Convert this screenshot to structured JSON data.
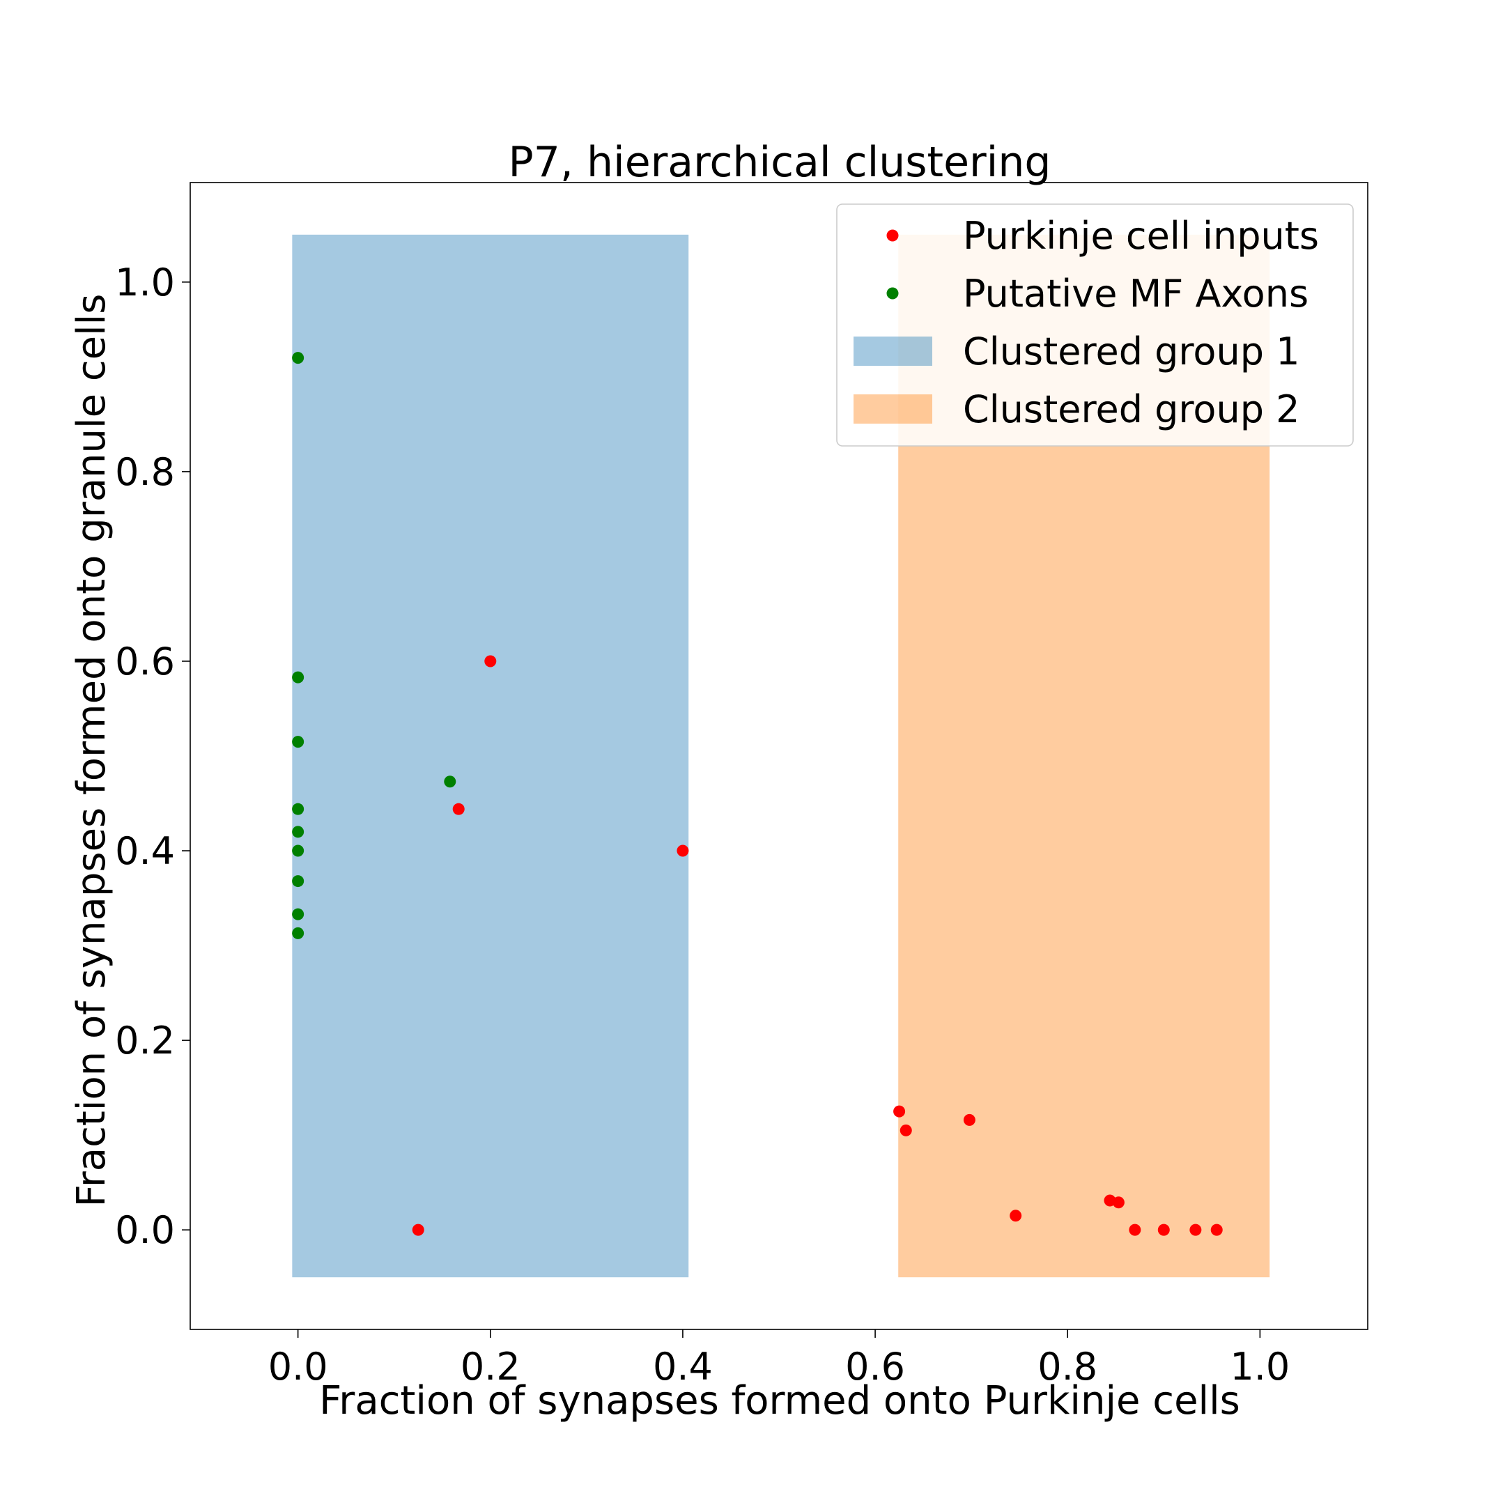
{
  "chart_data": {
    "type": "scatter",
    "title": "P7, hierarchical clustering",
    "xlabel": "Fraction of synapses formed onto Purkinje cells",
    "ylabel": "Fraction of synapses formed onto granule cells",
    "xlim": [
      -0.112,
      1.112
    ],
    "ylim": [
      -0.105,
      1.105
    ],
    "xticks": [
      "0.0",
      "0.2",
      "0.4",
      "0.6",
      "0.8",
      "1.0"
    ],
    "yticks": [
      "0.0",
      "0.2",
      "0.4",
      "0.6",
      "0.8",
      "1.0"
    ],
    "grid": false,
    "legend_position": "top-right",
    "regions": [
      {
        "name": "Clustered group 1",
        "x": [
          -0.006,
          0.406
        ],
        "y": [
          -0.05,
          1.05
        ],
        "color": "#1f77b4",
        "alpha": 0.4
      },
      {
        "name": "Clustered group 2",
        "x": [
          0.624,
          1.01
        ],
        "y": [
          -0.05,
          1.05
        ],
        "color": "#ff7f0e",
        "alpha": 0.4
      }
    ],
    "series": [
      {
        "name": "Purkinje cell inputs",
        "color": "#ff0000",
        "points": [
          [
            0.125,
            0.0
          ],
          [
            0.2,
            0.6
          ],
          [
            0.167,
            0.444
          ],
          [
            0.4,
            0.4
          ],
          [
            0.625,
            0.125
          ],
          [
            0.632,
            0.105
          ],
          [
            0.698,
            0.116
          ],
          [
            0.746,
            0.015
          ],
          [
            0.844,
            0.031
          ],
          [
            0.853,
            0.029
          ],
          [
            0.87,
            0.0
          ],
          [
            0.9,
            0.0
          ],
          [
            0.933,
            0.0
          ],
          [
            0.955,
            0.0
          ]
        ]
      },
      {
        "name": "Putative MF Axons",
        "color": "#008000",
        "points": [
          [
            0.0,
            0.92
          ],
          [
            0.0,
            0.583
          ],
          [
            0.0,
            0.515
          ],
          [
            0.0,
            0.444
          ],
          [
            0.0,
            0.42
          ],
          [
            0.0,
            0.4
          ],
          [
            0.0,
            0.368
          ],
          [
            0.0,
            0.333
          ],
          [
            0.0,
            0.313
          ],
          [
            0.158,
            0.473
          ]
        ]
      }
    ],
    "legend": [
      {
        "label": "Purkinje cell inputs",
        "kind": "marker",
        "color": "#ff0000"
      },
      {
        "label": "Putative MF Axons",
        "kind": "marker",
        "color": "#008000"
      },
      {
        "label": "Clustered group 1",
        "kind": "patch",
        "color": "#1f77b4"
      },
      {
        "label": "Clustered group 2",
        "kind": "patch",
        "color": "#ff7f0e"
      }
    ]
  }
}
